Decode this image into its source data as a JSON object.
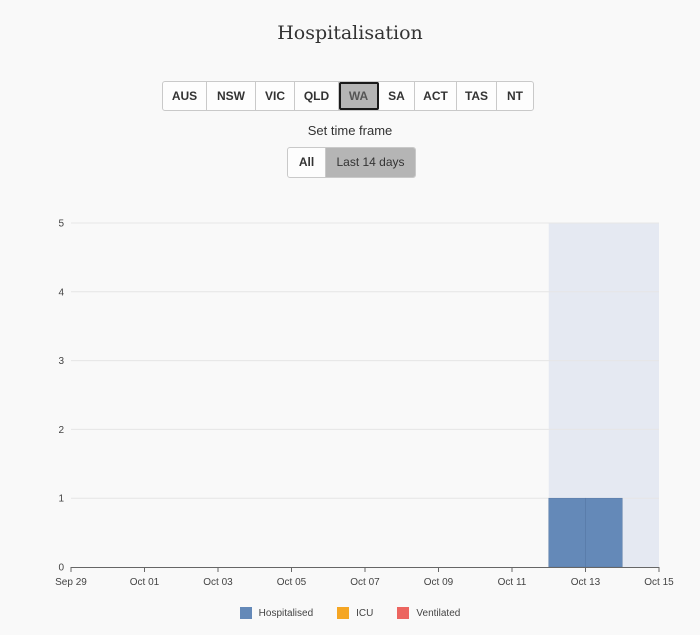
{
  "title": "Hospitalisation",
  "regions": {
    "items": [
      "AUS",
      "NSW",
      "VIC",
      "QLD",
      "WA",
      "SA",
      "ACT",
      "TAS",
      "NT"
    ],
    "selected": "WA"
  },
  "timeframe": {
    "label": "Set time frame",
    "options": [
      "All",
      "Last 14 days"
    ],
    "selected": "Last 14 days"
  },
  "chart_data": {
    "type": "bar",
    "stacked": true,
    "x_axis_type": "date",
    "xlim": [
      "2020-09-29",
      "2020-10-15"
    ],
    "x_ticks": [
      "Sep 29",
      "Oct 01",
      "Oct 03",
      "Oct 05",
      "Oct 07",
      "Oct 09",
      "Oct 11",
      "Oct 13",
      "Oct 15"
    ],
    "ylim": [
      0,
      5
    ],
    "y_ticks": [
      0,
      1,
      2,
      3,
      4,
      5
    ],
    "grid": "horizontal",
    "highlight_range": [
      "2020-10-12",
      "2020-10-15"
    ],
    "highlight_color": "#e5e9f2",
    "x": [
      "2020-10-12",
      "2020-10-13"
    ],
    "series": [
      {
        "name": "Hospitalised",
        "color": "#6489b8",
        "values": [
          1,
          1
        ]
      },
      {
        "name": "ICU",
        "color": "#f5a623",
        "values": [
          0,
          0
        ]
      },
      {
        "name": "Ventilated",
        "color": "#ec6560",
        "values": [
          0,
          0
        ]
      }
    ],
    "legend_position": "bottom"
  }
}
